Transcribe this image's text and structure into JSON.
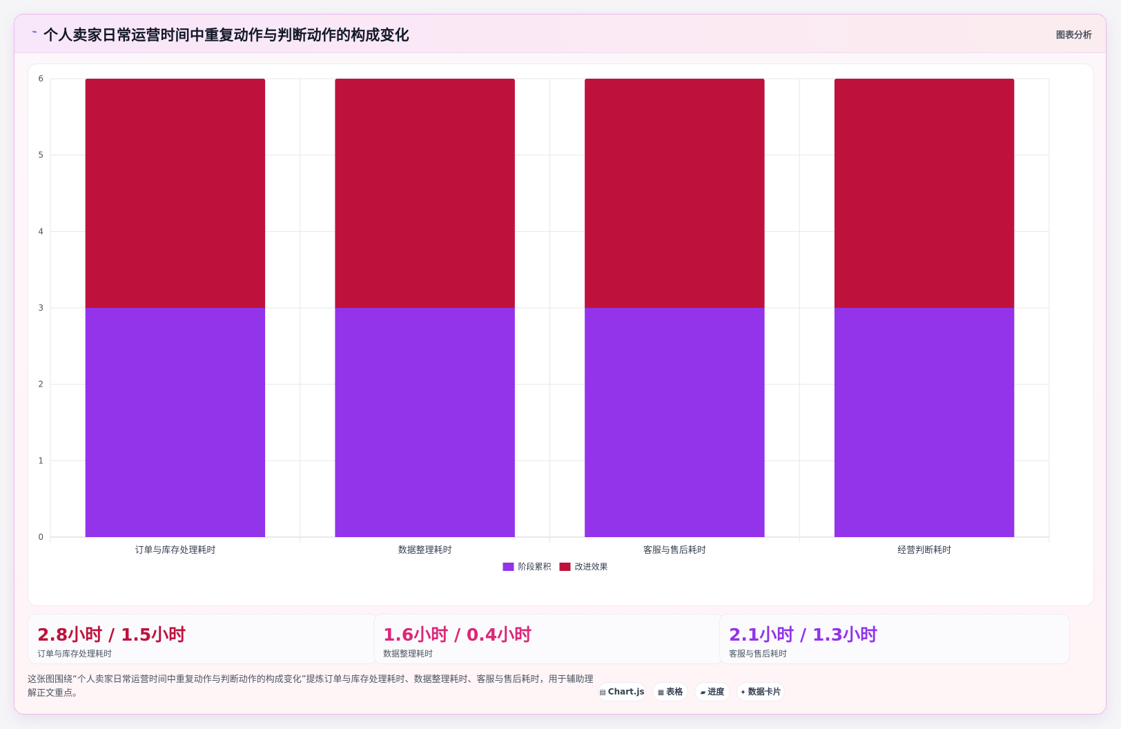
{
  "header": {
    "icon": "chart-wave-icon",
    "title": "个人卖家日常运营时间中重复动作与判断动作的构成变化",
    "tag": "图表分析"
  },
  "chart_data": {
    "type": "bar",
    "stacked": true,
    "categories": [
      "订单与库存处理耗时",
      "数据整理耗时",
      "客服与售后耗时",
      "经营判断耗时"
    ],
    "series": [
      {
        "name": "阶段累积",
        "color": "#9333ea",
        "values": [
          3,
          3,
          3,
          3
        ]
      },
      {
        "name": "改进效果",
        "color": "#be123c",
        "values": [
          3,
          3,
          3,
          3
        ]
      }
    ],
    "ylim": [
      0,
      6
    ],
    "yticks": [
      "0",
      "1",
      "2",
      "3",
      "4",
      "5",
      "6"
    ],
    "grid": true,
    "legend_position": "bottom"
  },
  "stats": [
    {
      "value": "2.8小时 / 1.5小时",
      "label": "订单与库存处理耗时",
      "color": "#be123c"
    },
    {
      "value": "1.6小时 / 0.4小时",
      "label": "数据整理耗时",
      "color": "#db2777"
    },
    {
      "value": "2.1小时 / 1.3小时",
      "label": "客服与售后耗时",
      "color": "#9333ea"
    }
  ],
  "footer": {
    "description": "这张图围绕“个人卖家日常运营时间中重复动作与判断动作的构成变化”提炼订单与库存处理耗时、数据整理耗时、客服与售后耗时，用于辅助理解正文重点。",
    "chips": [
      {
        "icon": "chart-icon",
        "glyph": "▤",
        "label": "Chart.js"
      },
      {
        "icon": "table-icon",
        "glyph": "▦",
        "label": "表格"
      },
      {
        "icon": "progress-icon",
        "glyph": "▰",
        "label": "进度"
      },
      {
        "icon": "sparkle-icon",
        "glyph": "✦",
        "label": "数据卡片"
      }
    ]
  }
}
